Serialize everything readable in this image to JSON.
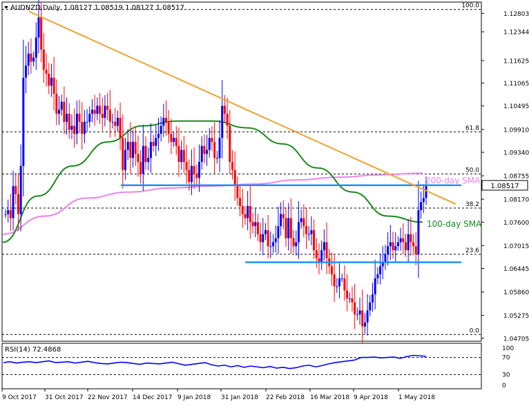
{
  "header": {
    "symbol": "AUDNZD,Daily",
    "ohlc": "1.08127 1.08519 1.08127 1.08517"
  },
  "colors": {
    "bull": "#0000ff",
    "bear": "#ff0000",
    "trendline": "#f0a030",
    "sma100": "#1a8a1a",
    "sma200": "#ee82ee",
    "support_line": "#1e90ff",
    "fib_line": "#000000",
    "rsi_line": "#0000ff",
    "price_label_bg": "#ffffff"
  },
  "chart_data": [
    {
      "type": "candlestick",
      "title": "AUDNZD,Daily",
      "grid": false,
      "ylim": [
        1.0465,
        1.1305
      ],
      "price_ticks": [
        "1.12803",
        "1.12344",
        "1.11625",
        "1.11065",
        "1.10495",
        "1.09910",
        "1.09340",
        "1.08755",
        "1.08170",
        "1.07600",
        "1.07015",
        "1.06445",
        "1.05860",
        "1.05275",
        "1.04705"
      ],
      "current_price": "1.08517",
      "x_tick_labels": [
        "9 Oct 2017",
        "31 Oct 2017",
        "22 Nov 2017",
        "14 Dec 2017",
        "9 Jan 2018",
        "31 Jan 2018",
        "22 Feb 2018",
        "16 Mar 2018",
        "9 Apr 2018",
        "1 May 2018"
      ],
      "fibonacci_levels": [
        {
          "label": "100.0",
          "value": 1.129
        },
        {
          "label": "61.8",
          "value": 1.0985
        },
        {
          "label": "50.0",
          "value": 1.088
        },
        {
          "label": "38.2",
          "value": 1.0795
        },
        {
          "label": "23.6",
          "value": 1.068
        },
        {
          "label": "0.0",
          "value": 1.048
        }
      ],
      "annotations": [
        {
          "text": "200-day SMA",
          "series": "sma200"
        },
        {
          "text": "100-day SMA",
          "series": "sma100"
        }
      ],
      "horizontal_lines": [
        {
          "from": "Dec 2017",
          "to": "end",
          "value": 1.0852
        },
        {
          "from": "Feb 2018",
          "to": "end",
          "value": 1.066
        }
      ],
      "trendline": {
        "from": {
          "date": "16 Oct 2017",
          "value": 1.1285
        },
        "to": {
          "date": "20 May 2018",
          "value": 1.0805
        }
      },
      "series": [
        {
          "name": "close",
          "values": [
            1.078,
            1.079,
            1.077,
            1.085,
            1.083,
            1.078,
            1.09,
            1.112,
            1.115,
            1.118,
            1.116,
            1.117,
            1.122,
            1.127,
            1.119,
            1.114,
            1.113,
            1.11,
            1.112,
            1.108,
            1.103,
            1.104,
            1.106,
            1.101,
            1.103,
            1.099,
            1.1,
            1.098,
            1.103,
            1.101,
            1.098,
            1.101,
            1.101,
            1.103,
            1.104,
            1.103,
            1.105,
            1.103,
            1.102,
            1.105,
            1.104,
            1.101,
            1.101,
            1.1,
            1.102,
            1.097,
            1.089,
            1.094,
            1.096,
            1.092,
            1.096,
            1.093,
            1.091,
            1.088,
            1.095,
            1.091,
            1.092,
            1.096,
            1.095,
            1.097,
            1.098,
            1.1,
            1.102,
            1.101,
            1.098,
            1.096,
            1.097,
            1.095,
            1.091,
            1.094,
            1.091,
            1.089,
            1.086,
            1.09,
            1.088,
            1.087,
            1.091,
            1.095,
            1.093,
            1.094,
            1.097,
            1.096,
            1.092,
            1.092,
            1.097,
            1.105,
            1.103,
            1.1,
            1.091,
            1.089,
            1.085,
            1.082,
            1.08,
            1.078,
            1.077,
            1.08,
            1.076,
            1.075,
            1.076,
            1.073,
            1.071,
            1.073,
            1.074,
            1.07,
            1.07,
            1.071,
            1.072,
            1.075,
            1.078,
            1.077,
            1.072,
            1.077,
            1.072,
            1.07,
            1.071,
            1.076,
            1.077,
            1.075,
            1.073,
            1.073,
            1.074,
            1.069,
            1.067,
            1.066,
            1.069,
            1.071,
            1.067,
            1.065,
            1.063,
            1.06,
            1.06,
            1.062,
            1.062,
            1.059,
            1.057,
            1.057,
            1.056,
            1.053,
            1.053,
            1.054,
            1.05,
            1.051,
            1.054,
            1.056,
            1.058,
            1.062,
            1.063,
            1.065,
            1.066,
            1.068,
            1.07,
            1.071,
            1.069,
            1.07,
            1.071,
            1.072,
            1.071,
            1.069,
            1.073,
            1.071,
            1.07,
            1.068,
            1.079,
            1.081,
            1.082,
            1.0852
          ]
        },
        {
          "name": "100-day SMA",
          "values": [
            1.071,
            1.0825,
            1.09,
            1.096,
            1.1,
            1.1012,
            1.1012,
            1.0995,
            1.0955,
            1.0895,
            1.0835,
            1.0775,
            1.076
          ]
        },
        {
          "name": "200-day SMA",
          "values": [
            1.073,
            1.0775,
            1.082,
            1.0835,
            1.0845,
            1.085,
            1.0855,
            1.0865,
            1.0872,
            1.0878,
            1.0882
          ]
        }
      ]
    },
    {
      "type": "line",
      "title": "RSI(14) 72.4868",
      "ylim": [
        0,
        100
      ],
      "y_ticks": [
        "100",
        "70",
        "30",
        "0"
      ],
      "levels": [
        70,
        30
      ],
      "series": [
        {
          "name": "RSI(14)",
          "values": [
            58,
            60,
            57,
            59,
            60,
            58,
            60,
            62,
            58,
            59,
            60,
            57,
            59,
            61,
            58,
            56,
            55,
            57,
            59,
            58,
            56,
            54,
            57,
            56,
            55,
            57,
            59,
            55,
            52,
            54,
            56,
            58,
            53,
            50,
            52,
            48,
            51,
            47,
            50,
            48,
            46,
            49,
            45,
            47,
            44,
            46,
            50,
            52,
            48,
            51,
            55,
            58,
            60,
            62,
            64,
            70,
            70,
            71,
            69,
            70,
            71,
            68,
            72,
            75,
            74,
            72.4868
          ]
        }
      ]
    }
  ]
}
